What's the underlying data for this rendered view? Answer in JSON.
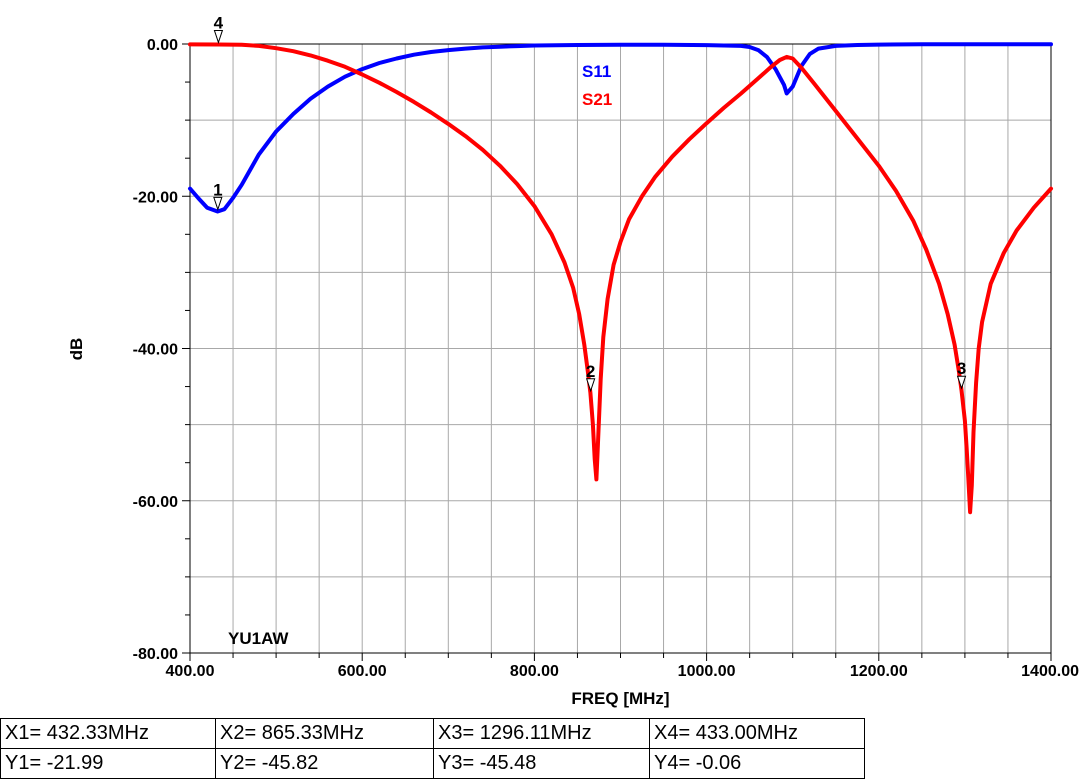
{
  "chart_data": {
    "type": "line",
    "xlabel": "FREQ [MHz]",
    "ylabel": "dB",
    "xlim": [
      400,
      1400
    ],
    "ylim": [
      -80,
      0
    ],
    "x_ticks": [
      "400.00",
      "600.00",
      "800.00",
      "1000.00",
      "1200.00",
      "1400.00"
    ],
    "y_ticks": [
      "0.00",
      "-20.00",
      "-40.00",
      "-60.00",
      "-80.00"
    ],
    "grid": true,
    "legend_position": "top-center",
    "annotation": "YU1AW",
    "series": [
      {
        "name": "S11",
        "color": "#0000ff",
        "x": [
          400,
          410,
          420,
          432,
          440,
          450,
          460,
          470,
          480,
          500,
          520,
          540,
          560,
          580,
          600,
          620,
          640,
          660,
          680,
          700,
          720,
          740,
          760,
          780,
          800,
          850,
          900,
          950,
          1000,
          1040,
          1050,
          1060,
          1070,
          1080,
          1090,
          1093,
          1100,
          1110,
          1120,
          1130,
          1150,
          1175,
          1200,
          1250,
          1300,
          1350,
          1400
        ],
        "y": [
          -19.0,
          -20.3,
          -21.5,
          -22.0,
          -21.7,
          -20.2,
          -18.5,
          -16.5,
          -14.5,
          -11.5,
          -9.2,
          -7.2,
          -5.6,
          -4.3,
          -3.3,
          -2.5,
          -1.9,
          -1.4,
          -1.05,
          -0.8,
          -0.6,
          -0.45,
          -0.35,
          -0.27,
          -0.2,
          -0.13,
          -0.1,
          -0.1,
          -0.15,
          -0.25,
          -0.4,
          -0.8,
          -1.7,
          -3.3,
          -5.4,
          -6.5,
          -5.6,
          -2.9,
          -1.3,
          -0.6,
          -0.25,
          -0.13,
          -0.08,
          -0.04,
          -0.02,
          -0.02,
          -0.02
        ]
      },
      {
        "name": "S21",
        "color": "#ff0000",
        "x": [
          400,
          433,
          460,
          480,
          500,
          520,
          540,
          560,
          580,
          600,
          620,
          640,
          660,
          680,
          700,
          720,
          740,
          760,
          780,
          800,
          820,
          835,
          845,
          852,
          858,
          862,
          865,
          868,
          870,
          872,
          874,
          877,
          880,
          885,
          892,
          900,
          910,
          925,
          940,
          960,
          980,
          1000,
          1020,
          1040,
          1060,
          1075,
          1085,
          1093,
          1100,
          1110,
          1125,
          1150,
          1175,
          1200,
          1220,
          1240,
          1255,
          1270,
          1280,
          1288,
          1293,
          1296,
          1300,
          1302,
          1304,
          1306,
          1308,
          1310,
          1313,
          1316,
          1320,
          1330,
          1345,
          1360,
          1380,
          1400
        ],
        "y": [
          -0.05,
          -0.06,
          -0.1,
          -0.25,
          -0.55,
          -0.95,
          -1.5,
          -2.2,
          -3.0,
          -4.0,
          -5.1,
          -6.3,
          -7.6,
          -9.0,
          -10.5,
          -12.1,
          -13.9,
          -16.0,
          -18.4,
          -21.3,
          -25.0,
          -28.7,
          -32.0,
          -35.5,
          -39.5,
          -43.0,
          -45.82,
          -50.0,
          -54.5,
          -57.2,
          -52.0,
          -44.0,
          -38.5,
          -33.5,
          -29.0,
          -26.0,
          -23.0,
          -20.0,
          -17.5,
          -14.8,
          -12.5,
          -10.4,
          -8.4,
          -6.5,
          -4.5,
          -3.0,
          -2.1,
          -1.7,
          -1.9,
          -3.1,
          -5.2,
          -8.8,
          -12.4,
          -16.0,
          -19.3,
          -23.2,
          -27.0,
          -31.5,
          -35.5,
          -39.5,
          -43.0,
          -45.48,
          -49.5,
          -53.0,
          -57.0,
          -61.5,
          -58.0,
          -51.0,
          -44.5,
          -40.0,
          -36.5,
          -31.5,
          -27.5,
          -24.5,
          -21.5,
          -19.0
        ]
      }
    ],
    "markers": [
      {
        "label": "1",
        "series": "S11",
        "x": 432.33,
        "y": -21.99
      },
      {
        "label": "2",
        "series": "S21",
        "x": 865.33,
        "y": -45.82
      },
      {
        "label": "3",
        "series": "S21",
        "x": 1296.11,
        "y": -45.48
      },
      {
        "label": "4",
        "series": "S21",
        "x": 433.0,
        "y": -0.06
      }
    ]
  },
  "marker_table": [
    {
      "x_text": "X1= 432.33MHz",
      "y_text": "Y1= -21.99"
    },
    {
      "x_text": "X2= 865.33MHz",
      "y_text": "Y2= -45.82"
    },
    {
      "x_text": "X3= 1296.11MHz",
      "y_text": "Y3= -45.48"
    },
    {
      "x_text": "X4= 433.00MHz",
      "y_text": "Y4= -0.06"
    }
  ]
}
